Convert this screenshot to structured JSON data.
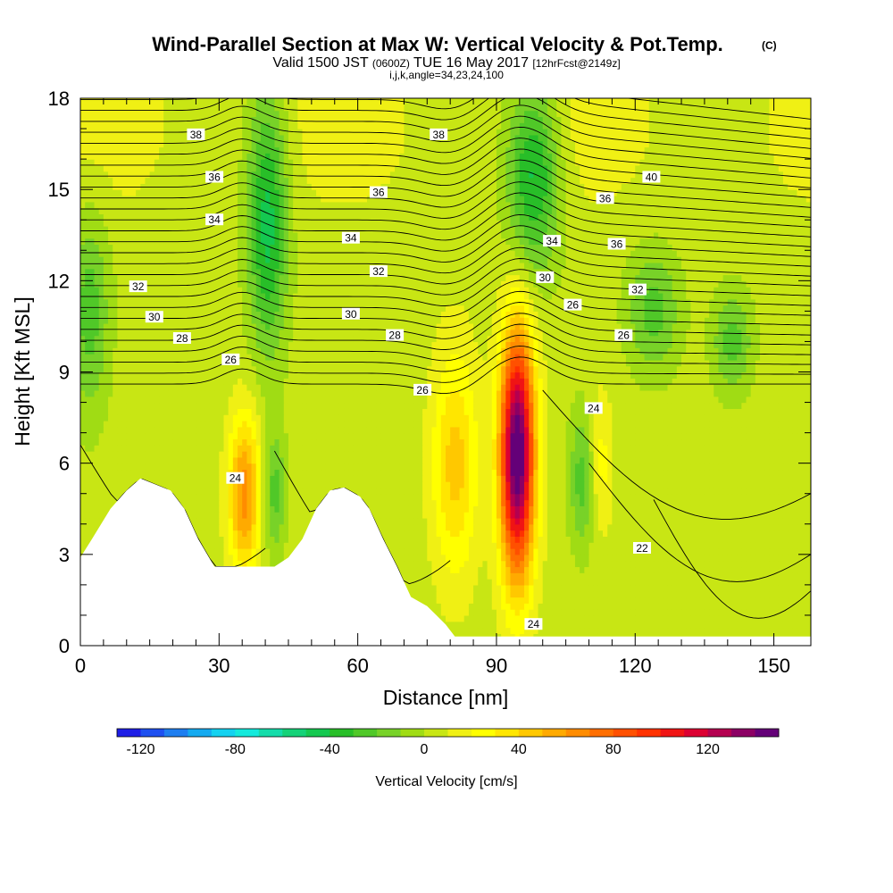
{
  "chart_data": {
    "type": "heatmap",
    "title": "Wind-Parallel Section at Max W: Vertical Velocity & Pot.Temp.",
    "title_units": "(C)",
    "subtitle_valid": "Valid 1500 JST",
    "subtitle_utc": "(0600Z)",
    "subtitle_date": "TUE 16 May 2017",
    "subtitle_fcst": "[12hrFcst@2149z]",
    "subtitle_indices": "i,j,k,angle=34,23,24,100",
    "xlabel": "Distance [nm]",
    "ylabel": "Height [Kft MSL]",
    "xlim": [
      0,
      158
    ],
    "ylim": [
      0,
      18
    ],
    "xticks": [
      0,
      30,
      60,
      90,
      120,
      150
    ],
    "xtick_labels": [
      "0",
      "30",
      "60",
      "90",
      "120",
      "150"
    ],
    "yticks": [
      0,
      3,
      6,
      9,
      12,
      15,
      18
    ],
    "ytick_labels": [
      "0",
      "3",
      "6",
      "9",
      "12",
      "15",
      "18"
    ],
    "colorbar": {
      "label": "Vertical Velocity [cm/s]",
      "min": -130,
      "max": 150,
      "step": 10,
      "ticks": [
        -120,
        -80,
        -40,
        0,
        40,
        80,
        120
      ],
      "tick_labels": [
        "-120",
        "-80",
        "-40",
        "0",
        "40",
        "80",
        "120"
      ],
      "colors": [
        "#1e1ee6",
        "#1e50f0",
        "#1e7ef0",
        "#14aaf0",
        "#14d2f0",
        "#14eadc",
        "#14dcaa",
        "#14d278",
        "#14c850",
        "#28be28",
        "#50c828",
        "#78d228",
        "#a0dc14",
        "#c8e614",
        "#f0f014",
        "#ffff00",
        "#ffe600",
        "#ffc800",
        "#ffaa00",
        "#ff8c00",
        "#ff6e00",
        "#ff5000",
        "#ff3200",
        "#f01414",
        "#dc0032",
        "#b40050",
        "#8c0064",
        "#640078"
      ]
    },
    "w_cores": [
      {
        "x": 94.5,
        "z": 6.3,
        "value": 150,
        "note": "strong updraft"
      },
      {
        "x": 35.5,
        "z": 5.0,
        "value": 60,
        "note": "updraft"
      },
      {
        "x": 81.0,
        "z": 6.0,
        "value": 40,
        "note": "updraft"
      },
      {
        "x": 112.5,
        "z": 6.0,
        "value": 20,
        "note": "updraft"
      },
      {
        "x": 40.5,
        "z": 14.0,
        "value": -50,
        "note": "downdraft"
      },
      {
        "x": 98.0,
        "z": 15.5,
        "value": -50,
        "note": "downdraft"
      },
      {
        "x": 2.0,
        "z": 11.0,
        "value": -30,
        "note": "downdraft"
      },
      {
        "x": 42.0,
        "z": 5.0,
        "value": -30,
        "note": "downdraft"
      },
      {
        "x": 108.5,
        "z": 5.5,
        "value": -30,
        "note": "downdraft"
      },
      {
        "x": 124.0,
        "z": 11.0,
        "value": -30,
        "note": "downdraft"
      },
      {
        "x": 141.0,
        "z": 10.0,
        "value": -30,
        "note": "downdraft"
      }
    ],
    "theta_labels": [
      {
        "text": "38",
        "x": 25,
        "z": 16.8
      },
      {
        "text": "36",
        "x": 29,
        "z": 15.4
      },
      {
        "text": "34",
        "x": 29,
        "z": 14.0
      },
      {
        "text": "32",
        "x": 12.5,
        "z": 11.8
      },
      {
        "text": "30",
        "x": 16,
        "z": 10.8
      },
      {
        "text": "28",
        "x": 22,
        "z": 10.1
      },
      {
        "text": "26",
        "x": 32.5,
        "z": 9.4
      },
      {
        "text": "24",
        "x": 33.5,
        "z": 5.5
      },
      {
        "text": "38",
        "x": 77.5,
        "z": 16.8
      },
      {
        "text": "36",
        "x": 64.5,
        "z": 14.9
      },
      {
        "text": "34",
        "x": 58.5,
        "z": 13.4
      },
      {
        "text": "32",
        "x": 64.5,
        "z": 12.3
      },
      {
        "text": "30",
        "x": 58.5,
        "z": 10.9
      },
      {
        "text": "28",
        "x": 68,
        "z": 10.2
      },
      {
        "text": "26",
        "x": 74,
        "z": 8.4
      },
      {
        "text": "40",
        "x": 123.5,
        "z": 15.4
      },
      {
        "text": "36",
        "x": 113.5,
        "z": 14.7
      },
      {
        "text": "34",
        "x": 102,
        "z": 13.3
      },
      {
        "text": "36",
        "x": 116,
        "z": 13.2
      },
      {
        "text": "30",
        "x": 100.5,
        "z": 12.1
      },
      {
        "text": "32",
        "x": 120.5,
        "z": 11.7
      },
      {
        "text": "26",
        "x": 106.5,
        "z": 11.2
      },
      {
        "text": "26",
        "x": 117.5,
        "z": 10.2
      },
      {
        "text": "24",
        "x": 111,
        "z": 7.8
      },
      {
        "text": "22",
        "x": 121.5,
        "z": 3.2
      },
      {
        "text": "24",
        "x": 98,
        "z": 0.7
      }
    ],
    "terrain": [
      [
        0,
        2.9
      ],
      [
        2.5,
        3.5
      ],
      [
        6.5,
        4.5
      ],
      [
        10,
        5.1
      ],
      [
        13,
        5.5
      ],
      [
        19.5,
        5.1
      ],
      [
        22.5,
        4.5
      ],
      [
        25.5,
        3.5
      ],
      [
        29,
        2.6
      ],
      [
        35.5,
        2.6
      ],
      [
        42,
        2.6
      ],
      [
        45,
        2.9
      ],
      [
        48,
        3.5
      ],
      [
        51,
        4.5
      ],
      [
        54,
        5.1
      ],
      [
        57,
        5.2
      ],
      [
        60.5,
        4.9
      ],
      [
        62.5,
        4.5
      ],
      [
        65.5,
        3.5
      ],
      [
        68.5,
        2.6
      ],
      [
        71.5,
        1.6
      ],
      [
        75,
        1.3
      ],
      [
        77,
        1.0
      ],
      [
        79,
        0.7
      ],
      [
        81,
        0.3
      ],
      [
        158,
        0.3
      ]
    ]
  }
}
